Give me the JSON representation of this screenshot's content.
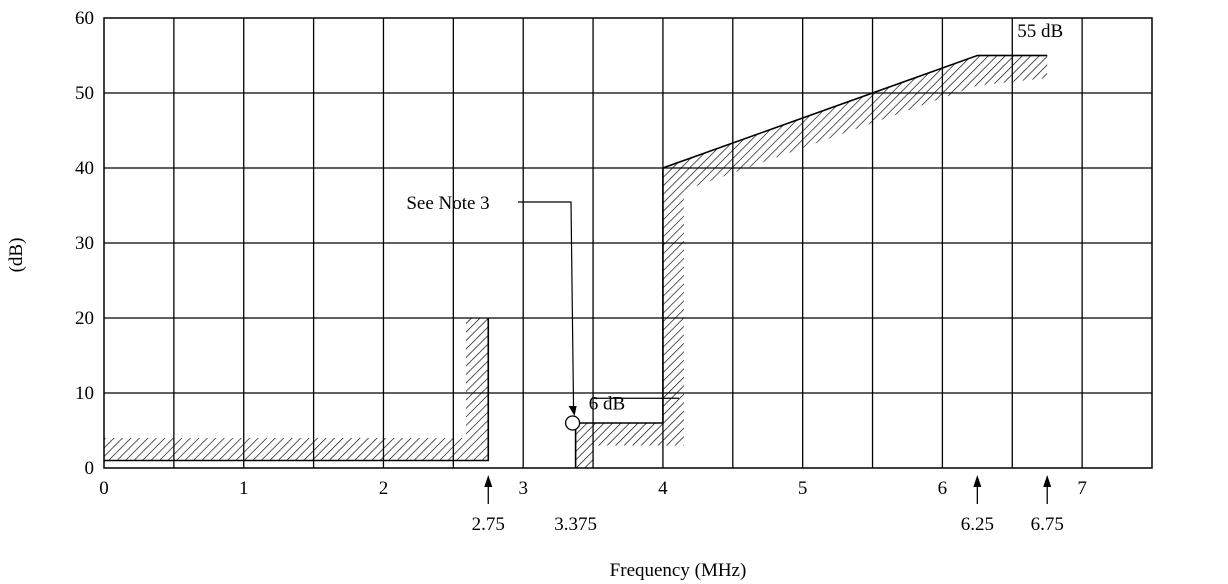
{
  "chart_data": {
    "type": "line",
    "title": "",
    "xlabel": "Frequency (MHz)",
    "ylabel": "(dB)",
    "xlim": [
      0,
      7.5
    ],
    "ylim": [
      0,
      60
    ],
    "grid": true,
    "x_ticks": [
      {
        "value": 0,
        "label": "0"
      },
      {
        "value": 1,
        "label": "1"
      },
      {
        "value": 2,
        "label": "2"
      },
      {
        "value": 3,
        "label": "3"
      },
      {
        "value": 4,
        "label": "4"
      },
      {
        "value": 5,
        "label": "5"
      },
      {
        "value": 6,
        "label": "6"
      },
      {
        "value": 7,
        "label": "7"
      }
    ],
    "y_ticks": [
      {
        "value": 0,
        "label": "0"
      },
      {
        "value": 10,
        "label": "10"
      },
      {
        "value": 20,
        "label": "20"
      },
      {
        "value": 30,
        "label": "30"
      },
      {
        "value": 40,
        "label": "40"
      },
      {
        "value": 50,
        "label": "50"
      },
      {
        "value": 60,
        "label": "60"
      }
    ],
    "x_grid": [
      0.5,
      1,
      1.5,
      2,
      2.5,
      3,
      3.5,
      4,
      4.5,
      5,
      5.5,
      6,
      6.5,
      7
    ],
    "y_grid": [
      10,
      20,
      30,
      40,
      50
    ],
    "series": [
      {
        "x": [
          0,
          2.75,
          2.75
        ],
        "y": [
          1,
          1,
          20
        ]
      },
      {
        "x": [
          3.375,
          3.375,
          4,
          4,
          6.25,
          6.75
        ],
        "y": [
          0,
          6,
          6,
          40,
          55,
          55
        ]
      }
    ],
    "markers": [
      {
        "x": 2.75,
        "label": "2.75"
      },
      {
        "x": 3.375,
        "label": "3.375"
      },
      {
        "x": 6.25,
        "label": "6.25"
      },
      {
        "x": 6.75,
        "label": "6.75"
      }
    ],
    "annotations": [
      {
        "text": "See Note 3",
        "target": [
          3.375,
          6
        ]
      },
      {
        "text": "6 dB",
        "x": 3.9,
        "y": 8.5
      },
      {
        "text": "55 dB",
        "x": 6.6,
        "y": 57.5
      }
    ]
  }
}
